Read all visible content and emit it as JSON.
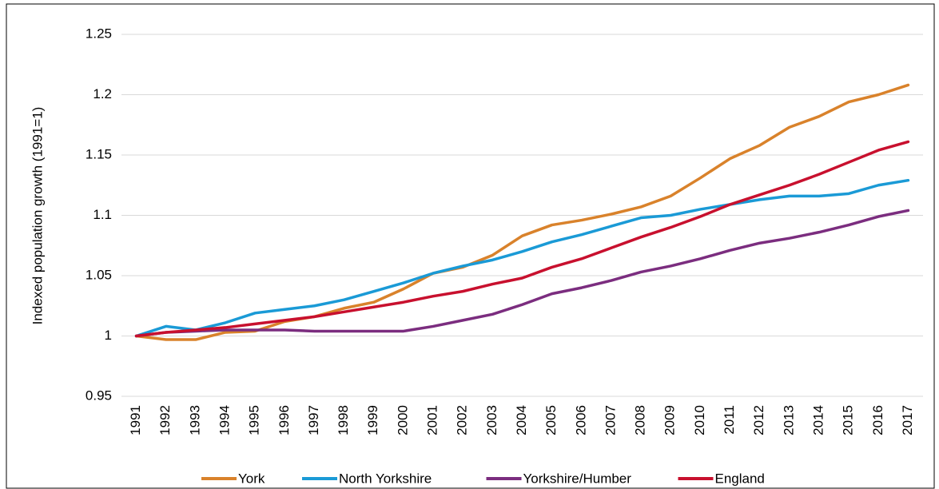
{
  "chart_data": {
    "type": "line",
    "y_label": "Indexed population growth (1991=1)",
    "categories": [
      "1991",
      "1992",
      "1993",
      "1994",
      "1995",
      "1996",
      "1997",
      "1998",
      "1999",
      "2000",
      "2001",
      "2002",
      "2003",
      "2004",
      "2005",
      "2006",
      "2007",
      "2008",
      "2009",
      "2010",
      "2011",
      "2012",
      "2013",
      "2014",
      "2015",
      "2016",
      "2017"
    ],
    "series": [
      {
        "name": "York",
        "color": "#d9822b",
        "values": [
          1,
          0.997,
          0.997,
          1.003,
          1.004,
          1.012,
          1.016,
          1.023,
          1.028,
          1.039,
          1.052,
          1.057,
          1.067,
          1.083,
          1.092,
          1.096,
          1.101,
          1.107,
          1.116,
          1.131,
          1.147,
          1.158,
          1.173,
          1.182,
          1.194,
          1.2,
          1.208
        ]
      },
      {
        "name": "North Yorkshire",
        "color": "#1a9ad6",
        "values": [
          1,
          1.008,
          1.005,
          1.011,
          1.019,
          1.022,
          1.025,
          1.03,
          1.037,
          1.044,
          1.052,
          1.058,
          1.063,
          1.07,
          1.078,
          1.084,
          1.091,
          1.098,
          1.1,
          1.105,
          1.109,
          1.113,
          1.116,
          1.116,
          1.118,
          1.125,
          1.129
        ]
      },
      {
        "name": "Yorkshire/Humber",
        "color": "#7b2d7f",
        "values": [
          1,
          1.003,
          1.004,
          1.005,
          1.005,
          1.005,
          1.004,
          1.004,
          1.004,
          1.004,
          1.008,
          1.013,
          1.018,
          1.026,
          1.035,
          1.04,
          1.046,
          1.053,
          1.058,
          1.064,
          1.071,
          1.077,
          1.081,
          1.086,
          1.092,
          1.099,
          1.104
        ]
      },
      {
        "name": "England",
        "color": "#c8102e",
        "values": [
          1,
          1.003,
          1.005,
          1.007,
          1.01,
          1.013,
          1.016,
          1.02,
          1.024,
          1.028,
          1.033,
          1.037,
          1.043,
          1.048,
          1.057,
          1.064,
          1.073,
          1.082,
          1.09,
          1.099,
          1.109,
          1.117,
          1.125,
          1.134,
          1.144,
          1.154,
          1.161
        ]
      }
    ],
    "ylim": [
      0.95,
      1.25
    ],
    "yticks": [
      0.95,
      1,
      1.05,
      1.1,
      1.15,
      1.2,
      1.25
    ],
    "grid": true,
    "legend": "bottom"
  }
}
